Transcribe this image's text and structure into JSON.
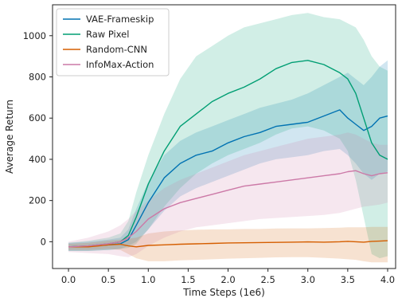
{
  "chart_data": {
    "type": "line",
    "title": "",
    "xlabel": "Time Steps (1e6)",
    "ylabel": "Average Return",
    "xlim": [
      -0.2,
      4.1
    ],
    "ylim": [
      -130,
      1150
    ],
    "xticks": [
      0.0,
      0.5,
      1.0,
      1.5,
      2.0,
      2.5,
      3.0,
      3.5,
      4.0
    ],
    "xtick_labels": [
      "0.0",
      "0.5",
      "1.0",
      "1.5",
      "2.0",
      "2.5",
      "3.0",
      "3.5",
      "4.0"
    ],
    "yticks": [
      0,
      200,
      400,
      600,
      800,
      1000
    ],
    "ytick_labels": [
      "0",
      "200",
      "400",
      "600",
      "800",
      "1000"
    ],
    "grid": false,
    "legend_position": "top-left",
    "shaded_band": "variance across runs",
    "series": [
      {
        "name": "VAE-Frameskip",
        "color": "#0072b2",
        "x": [
          0.0,
          0.25,
          0.5,
          0.65,
          0.75,
          0.85,
          1.0,
          1.2,
          1.4,
          1.6,
          1.8,
          2.0,
          2.2,
          2.4,
          2.6,
          2.8,
          3.0,
          3.2,
          3.4,
          3.5,
          3.6,
          3.7,
          3.8,
          3.9,
          4.0
        ],
        "values": [
          -25,
          -22,
          -15,
          -10,
          10,
          80,
          190,
          310,
          380,
          420,
          440,
          480,
          510,
          530,
          560,
          570,
          580,
          610,
          640,
          600,
          570,
          540,
          560,
          600,
          610
        ],
        "upper": [
          -5,
          0,
          10,
          20,
          60,
          160,
          290,
          420,
          490,
          530,
          560,
          590,
          620,
          650,
          670,
          690,
          720,
          760,
          800,
          820,
          790,
          760,
          800,
          850,
          880
        ],
        "lower": [
          -45,
          -45,
          -40,
          -35,
          -20,
          0,
          60,
          150,
          220,
          260,
          290,
          320,
          350,
          380,
          400,
          410,
          420,
          440,
          450,
          420,
          380,
          330,
          300,
          330,
          340
        ]
      },
      {
        "name": "Raw Pixel",
        "color": "#009e73",
        "x": [
          0.0,
          0.25,
          0.5,
          0.65,
          0.75,
          0.85,
          1.0,
          1.2,
          1.4,
          1.6,
          1.8,
          2.0,
          2.2,
          2.4,
          2.6,
          2.8,
          3.0,
          3.2,
          3.4,
          3.5,
          3.6,
          3.7,
          3.8,
          3.9,
          4.0
        ],
        "values": [
          -25,
          -20,
          -10,
          0,
          30,
          120,
          280,
          440,
          560,
          620,
          680,
          720,
          750,
          790,
          840,
          870,
          880,
          860,
          820,
          790,
          720,
          600,
          480,
          420,
          400
        ],
        "upper": [
          -5,
          5,
          20,
          40,
          100,
          240,
          420,
          620,
          790,
          900,
          950,
          1000,
          1040,
          1060,
          1080,
          1100,
          1110,
          1090,
          1080,
          1060,
          1040,
          980,
          900,
          850,
          830
        ],
        "lower": [
          -45,
          -45,
          -40,
          -35,
          -30,
          -10,
          60,
          170,
          260,
          330,
          380,
          420,
          450,
          480,
          520,
          550,
          560,
          540,
          500,
          440,
          300,
          120,
          -60,
          -80,
          -70
        ]
      },
      {
        "name": "Random-CNN",
        "color": "#d55e00",
        "x": [
          0.0,
          0.25,
          0.5,
          0.65,
          0.75,
          0.85,
          1.0,
          1.2,
          1.4,
          1.6,
          1.8,
          2.0,
          2.2,
          2.4,
          2.6,
          2.8,
          3.0,
          3.2,
          3.4,
          3.5,
          3.6,
          3.7,
          3.8,
          3.9,
          4.0
        ],
        "values": [
          -25,
          -25,
          -15,
          -12,
          -20,
          -25,
          -18,
          -15,
          -12,
          -10,
          -8,
          -6,
          -5,
          -4,
          -3,
          -2,
          -1,
          -2,
          0,
          2,
          0,
          -2,
          2,
          3,
          5
        ],
        "upper": [
          -10,
          -5,
          5,
          10,
          15,
          20,
          40,
          50,
          55,
          58,
          60,
          60,
          62,
          62,
          64,
          65,
          65,
          66,
          68,
          70,
          70,
          70,
          72,
          72,
          72
        ],
        "lower": [
          -40,
          -40,
          -35,
          -40,
          -60,
          -80,
          -95,
          -95,
          -90,
          -88,
          -85,
          -82,
          -80,
          -78,
          -76,
          -75,
          -75,
          -78,
          -82,
          -85,
          -88,
          -95,
          -100,
          -100,
          -100
        ]
      },
      {
        "name": "InfoMax-Action",
        "color": "#cc79a7",
        "x": [
          0.0,
          0.25,
          0.5,
          0.65,
          0.75,
          0.85,
          1.0,
          1.2,
          1.4,
          1.6,
          1.8,
          2.0,
          2.2,
          2.4,
          2.6,
          2.8,
          3.0,
          3.2,
          3.4,
          3.5,
          3.6,
          3.7,
          3.8,
          3.9,
          4.0
        ],
        "values": [
          -25,
          -20,
          -10,
          0,
          20,
          50,
          110,
          160,
          190,
          210,
          230,
          250,
          270,
          280,
          290,
          300,
          310,
          320,
          330,
          340,
          345,
          330,
          320,
          330,
          335
        ],
        "upper": [
          0,
          20,
          50,
          80,
          110,
          150,
          200,
          260,
          300,
          330,
          360,
          390,
          420,
          440,
          460,
          480,
          500,
          510,
          520,
          530,
          520,
          500,
          480,
          470,
          470
        ],
        "lower": [
          -50,
          -55,
          -60,
          -70,
          -75,
          -60,
          -20,
          20,
          50,
          70,
          80,
          90,
          100,
          110,
          115,
          120,
          125,
          130,
          140,
          150,
          160,
          170,
          175,
          180,
          190
        ]
      }
    ]
  }
}
